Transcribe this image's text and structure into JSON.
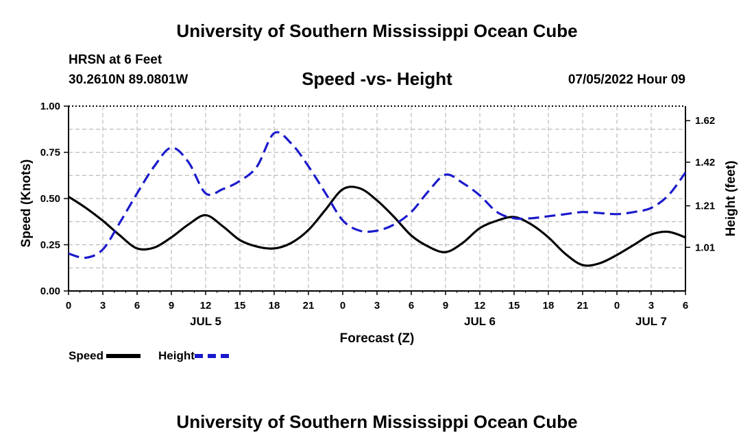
{
  "header": {
    "title": "University of Southern Mississippi Ocean Cube",
    "station": "HRSN at 6 Feet",
    "coordinates": "30.2610N  89.0801W",
    "subtitle": "Speed -vs- Height",
    "datetime": "07/05/2022 Hour 09"
  },
  "footer": {
    "title": "University of Southern Mississippi Ocean Cube"
  },
  "legend": {
    "speed_label": "Speed",
    "height_label": "Height"
  },
  "colors": {
    "speed": "#000000",
    "height": "#1a1acc",
    "grid": "#bbbbbb"
  },
  "chart_data": {
    "type": "line",
    "xlabel": "Forecast (Z)",
    "ylabel_left": "Speed (Knots)",
    "ylabel_right": "Height (feet)",
    "x_range_hours": [
      0,
      54
    ],
    "x_ticks": [
      {
        "h": 0,
        "label": "0"
      },
      {
        "h": 3,
        "label": "3"
      },
      {
        "h": 6,
        "label": "6"
      },
      {
        "h": 9,
        "label": "9"
      },
      {
        "h": 12,
        "label": "12"
      },
      {
        "h": 15,
        "label": "15"
      },
      {
        "h": 18,
        "label": "18"
      },
      {
        "h": 21,
        "label": "21"
      },
      {
        "h": 24,
        "label": "0"
      },
      {
        "h": 27,
        "label": "3"
      },
      {
        "h": 30,
        "label": "6"
      },
      {
        "h": 33,
        "label": "9"
      },
      {
        "h": 36,
        "label": "12"
      },
      {
        "h": 39,
        "label": "15"
      },
      {
        "h": 42,
        "label": "18"
      },
      {
        "h": 45,
        "label": "21"
      },
      {
        "h": 48,
        "label": "0"
      },
      {
        "h": 51,
        "label": "3"
      },
      {
        "h": 54,
        "label": "6"
      }
    ],
    "day_labels": [
      {
        "h": 12,
        "label": "JUL 5"
      },
      {
        "h": 36,
        "label": "JUL 6"
      },
      {
        "h": 51,
        "label": "JUL 7"
      }
    ],
    "left_axis": {
      "ylim": [
        0,
        1.0
      ],
      "ticks": [
        0,
        0.25,
        0.5,
        0.75,
        1.0
      ],
      "tick_labels": [
        "0.00",
        "0.25",
        "0.50",
        "0.75",
        "1.00"
      ]
    },
    "right_axis": {
      "ylim": [
        0.8,
        1.69
      ],
      "ticks": [
        1.01,
        1.21,
        1.42,
        1.62
      ],
      "tick_labels": [
        "1.01",
        "1.21",
        "1.42",
        "1.62"
      ]
    },
    "series": [
      {
        "name": "Speed",
        "axis": "left",
        "style": "solid",
        "x": [
          0,
          1.5,
          3,
          4.5,
          6,
          7.5,
          9,
          10.5,
          12,
          13.5,
          15,
          16.5,
          18,
          19.5,
          21,
          22.5,
          24,
          25.5,
          27,
          28.5,
          30,
          31.5,
          33,
          34.5,
          36,
          37.5,
          39,
          40.5,
          42,
          43.5,
          45,
          46.5,
          48,
          49.5,
          51,
          52.5,
          54
        ],
        "values": [
          0.51,
          0.45,
          0.38,
          0.3,
          0.23,
          0.235,
          0.29,
          0.36,
          0.41,
          0.35,
          0.275,
          0.24,
          0.23,
          0.26,
          0.33,
          0.44,
          0.55,
          0.555,
          0.49,
          0.4,
          0.3,
          0.24,
          0.21,
          0.26,
          0.34,
          0.38,
          0.4,
          0.36,
          0.29,
          0.2,
          0.14,
          0.15,
          0.195,
          0.25,
          0.305,
          0.32,
          0.29
        ]
      },
      {
        "name": "Height",
        "axis": "right",
        "style": "dashed",
        "x": [
          0,
          1.5,
          3,
          4.5,
          6,
          7.5,
          9,
          10.5,
          12,
          13.5,
          15,
          16.5,
          18,
          19.5,
          21,
          22.5,
          24,
          25.5,
          27,
          28.5,
          30,
          31.5,
          33,
          34.5,
          36,
          37.5,
          39,
          40.5,
          42,
          43.5,
          45,
          46.5,
          48,
          49.5,
          51,
          52.5,
          54
        ],
        "values": [
          0.98,
          0.96,
          1.0,
          1.13,
          1.27,
          1.4,
          1.49,
          1.42,
          1.27,
          1.29,
          1.33,
          1.4,
          1.56,
          1.51,
          1.4,
          1.27,
          1.14,
          1.09,
          1.09,
          1.12,
          1.18,
          1.28,
          1.36,
          1.32,
          1.26,
          1.18,
          1.15,
          1.15,
          1.16,
          1.17,
          1.18,
          1.175,
          1.17,
          1.18,
          1.2,
          1.26,
          1.37
        ]
      }
    ]
  }
}
